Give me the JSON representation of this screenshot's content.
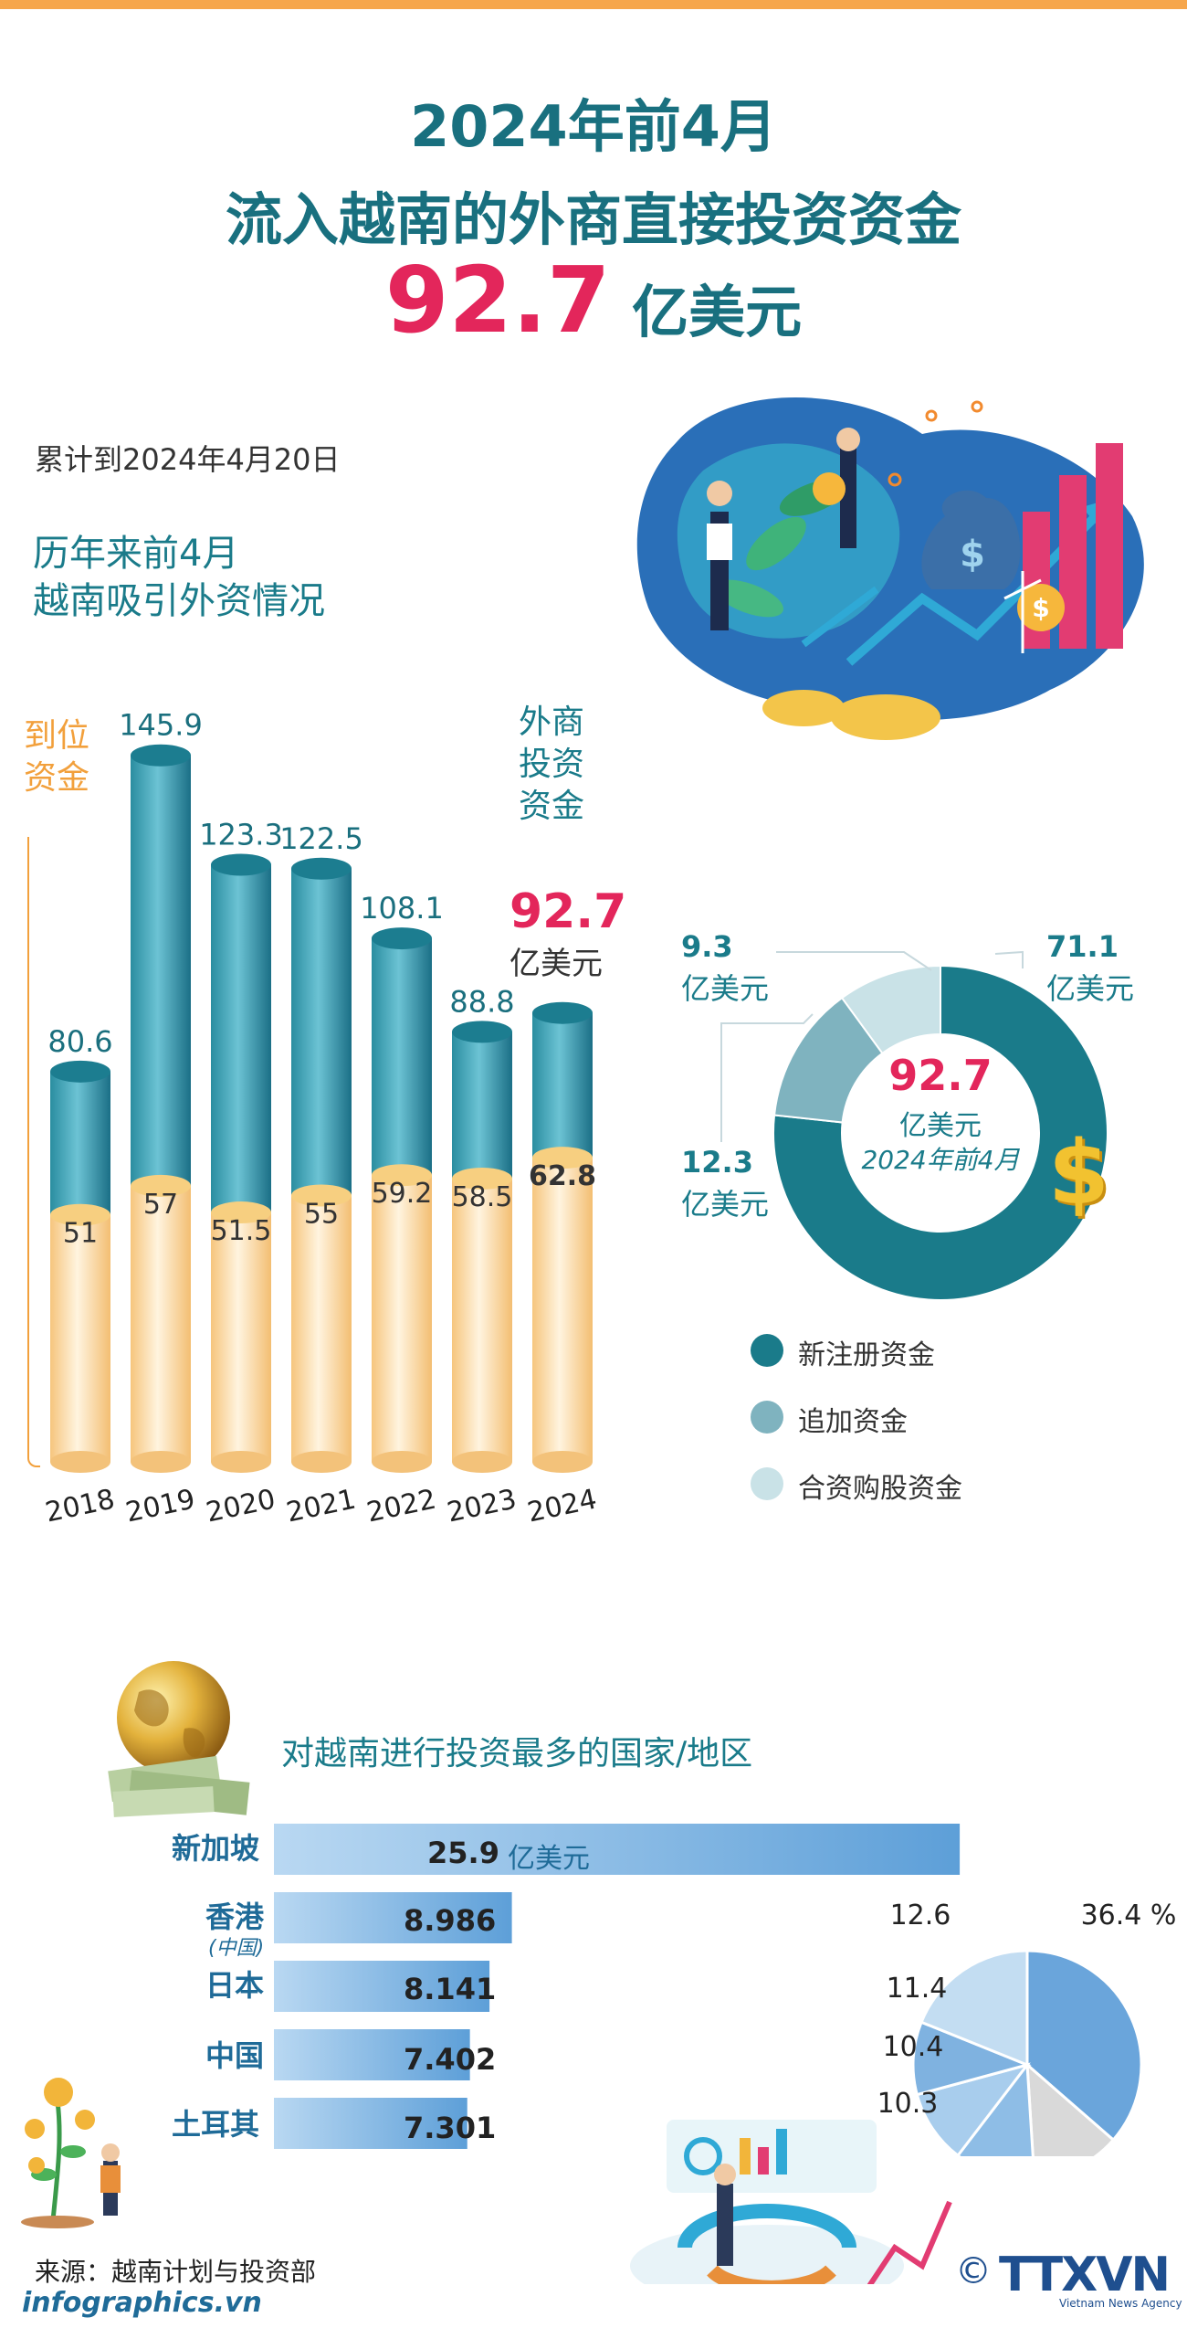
{
  "header": {
    "line1": "2024年前4月",
    "line2": "流入越南的外商直接投资资金",
    "headline_value": "92.7",
    "headline_unit": "亿美元"
  },
  "as_of": "累计到2024年4月20日",
  "bar_section": {
    "title_line1": "历年来前4月",
    "title_line2": "越南吸引外资情况",
    "label_disbursed": "到位\n资金",
    "label_registered": "外商\n投资\n资金",
    "highlight_value": "92.7",
    "highlight_unit": "亿美元"
  },
  "donut": {
    "center_value": "92.7",
    "center_unit": "亿美元",
    "center_period": "2024年前4月",
    "callouts": [
      {
        "value": "71.1",
        "unit": "亿美元"
      },
      {
        "value": "12.3",
        "unit": "亿美元"
      },
      {
        "value": "9.3",
        "unit": "亿美元"
      }
    ],
    "legend": [
      {
        "label": "新注册资金"
      },
      {
        "label": "追加资金"
      },
      {
        "label": "合资购股资金"
      }
    ]
  },
  "country_section": {
    "title": "对越南进行投资最多的国家/地区",
    "unit": "亿美元",
    "countries": [
      {
        "name": "新加坡",
        "sub": "",
        "value": "25.9"
      },
      {
        "name": "香港",
        "sub": "(中国)",
        "value": "8.986"
      },
      {
        "name": "日本",
        "sub": "",
        "value": "8.141"
      },
      {
        "name": "中国",
        "sub": "",
        "value": "7.402"
      },
      {
        "name": "土耳其",
        "sub": "",
        "value": "7.301"
      }
    ],
    "pie_labels": [
      "36.4 %",
      "12.6",
      "11.4",
      "10.4",
      "10.3"
    ]
  },
  "footer": {
    "source": "来源：越南计划与投资部",
    "site": "infographics.vn",
    "copyright": "©",
    "brand": "TTXVN",
    "brand_sub": "Vietnam News Agency"
  },
  "colors": {
    "teal_dark": "#1a7b8a",
    "teal_mid": "#7fb3bf",
    "teal_light": "#c9e2e7",
    "cream": "#fbd79b",
    "accent_pink": "#e3265b",
    "bar_blue": "#6fa6d6"
  },
  "chart_data": [
    {
      "type": "bar",
      "categories": [
        "2018",
        "2019",
        "2020",
        "2021",
        "2022",
        "2023",
        "2024"
      ],
      "series": [
        {
          "name": "外商投资资金",
          "values": [
            80.6,
            145.9,
            123.3,
            122.5,
            108.1,
            88.8,
            92.7
          ]
        },
        {
          "name": "到位资金",
          "values": [
            51,
            57,
            51.5,
            55,
            59.2,
            58.5,
            62.8
          ]
        }
      ]
    },
    {
      "type": "pie",
      "labels": [
        "新注册资金",
        "追加资金",
        "合资购股资金"
      ],
      "values": [
        71.1,
        12.3,
        9.3
      ]
    },
    {
      "type": "bar",
      "orientation": "horizontal",
      "categories": [
        "新加坡",
        "香港(中国)",
        "日本",
        "中国",
        "土耳其"
      ],
      "values": [
        25.9,
        8.986,
        8.141,
        7.402,
        7.301
      ]
    },
    {
      "type": "pie",
      "values": [
        36.4,
        12.6,
        11.4,
        10.4,
        10.3
      ]
    }
  ]
}
